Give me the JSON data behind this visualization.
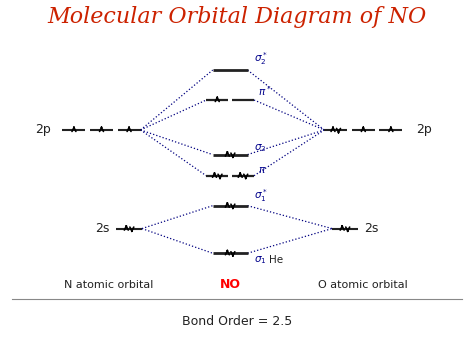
{
  "title": "Molecular Orbital Diagram of NO",
  "title_color": "#cc2200",
  "bg_color": "#ffffff",
  "bond_order_text": "Bond Order = 2.5",
  "label_n": "N atomic orbital",
  "label_no": "NO",
  "label_no_color": "#ff0000",
  "label_o": "O atomic orbital",
  "mo_label_color": "#00008B",
  "line_color": "#222222",
  "dash_color": "#000080",
  "title_fontsize": 16,
  "body_fontsize": 9,
  "mo_fontsize": 7.5
}
